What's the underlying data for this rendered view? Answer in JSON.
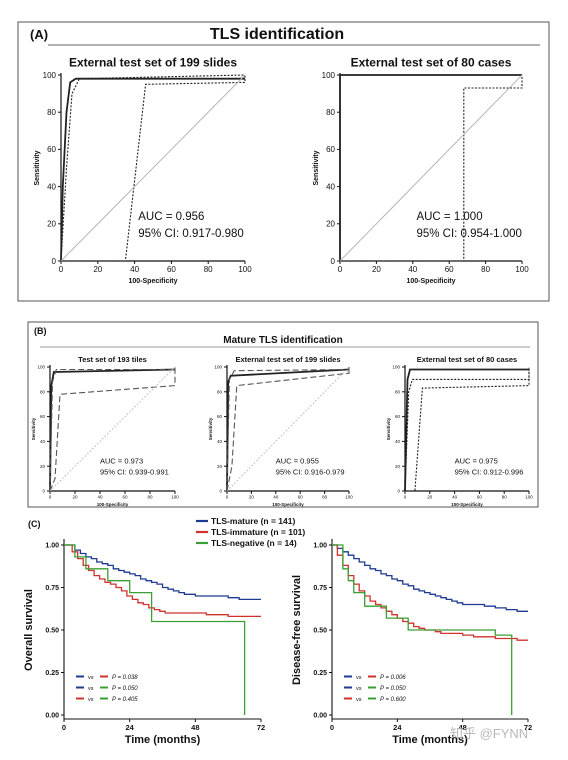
{
  "panelA": {
    "letter": "(A)",
    "title": "TLS identification",
    "charts": [
      {
        "type": "line",
        "title": "External test set of 199 slides",
        "xlabel": "100-Specificity",
        "ylabel": "Sensitivity",
        "xticks": [
          "0",
          "20",
          "40",
          "60",
          "80",
          "100"
        ],
        "yticks": [
          "0",
          "20",
          "40",
          "60",
          "80",
          "100"
        ],
        "xlim": [
          0,
          100
        ],
        "ylim": [
          0,
          100
        ],
        "auc_text": "AUC = 0.956",
        "ci_text": "95% CI: 0.917-0.980",
        "series": [
          {
            "style": "solid",
            "x": [
              0,
              1,
              3,
              5,
              8,
              100
            ],
            "y": [
              0,
              40,
              80,
              96,
              98,
              98
            ]
          },
          {
            "style": "dotted",
            "x": [
              0,
              3,
              6,
              10,
              100
            ],
            "y": [
              0,
              50,
              90,
              98,
              100
            ]
          },
          {
            "style": "dotted",
            "x": [
              0,
              35,
              46,
              100,
              100
            ],
            "y": [
              0,
              0,
              95,
              96,
              100
            ]
          },
          {
            "style": "diag",
            "x": [
              0,
              100
            ],
            "y": [
              0,
              100
            ]
          }
        ]
      },
      {
        "type": "line",
        "title": "External test set of 80 cases",
        "xlabel": "100-Specificity",
        "ylabel": "Sensitivity",
        "xticks": [
          "0",
          "20",
          "40",
          "60",
          "80",
          "100"
        ],
        "yticks": [
          "0",
          "20",
          "40",
          "60",
          "80",
          "100"
        ],
        "xlim": [
          0,
          100
        ],
        "ylim": [
          0,
          100
        ],
        "auc_text": "AUC = 1.000",
        "ci_text": "95% CI: 0.954-1.000",
        "series": [
          {
            "style": "solid",
            "x": [
              0,
              0,
              100
            ],
            "y": [
              0,
              100,
              100
            ]
          },
          {
            "style": "dotted",
            "x": [
              0,
              68,
              68,
              100,
              100
            ],
            "y": [
              0,
              0,
              93,
              93,
              100
            ]
          },
          {
            "style": "diag",
            "x": [
              0,
              100
            ],
            "y": [
              0,
              100
            ]
          }
        ]
      }
    ]
  },
  "panelB": {
    "letter": "(B)",
    "title": "Mature TLS identification",
    "charts": [
      {
        "type": "line",
        "title": "Test set of 193 tiles",
        "xlabel": "100-Specificity",
        "ylabel": "Sensitivity",
        "xticks": [
          "0",
          "20",
          "40",
          "60",
          "80",
          "100"
        ],
        "yticks": [
          "0",
          "20",
          "40",
          "60",
          "80",
          "100"
        ],
        "xlim": [
          0,
          100
        ],
        "ylim": [
          0,
          100
        ],
        "auc_text": "AUC = 0.973",
        "ci_text": "95% CI: 0.939-0.991",
        "series": [
          {
            "style": "solid",
            "x": [
              0,
              1,
              3,
              100
            ],
            "y": [
              0,
              85,
              96,
              98
            ]
          },
          {
            "style": "dashed",
            "x": [
              0,
              2,
              5,
              100,
              100
            ],
            "y": [
              0,
              88,
              98,
              98,
              100
            ]
          },
          {
            "style": "dashed",
            "x": [
              0,
              4,
              8,
              100,
              100
            ],
            "y": [
              0,
              10,
              78,
              85,
              100
            ]
          },
          {
            "style": "diag",
            "x": [
              0,
              100
            ],
            "y": [
              0,
              100
            ]
          }
        ]
      },
      {
        "type": "line",
        "title": "External test set of 199 slides",
        "xlabel": "100-Specificity",
        "ylabel": "Sensitivity",
        "xticks": [
          "0",
          "20",
          "40",
          "60",
          "80",
          "100"
        ],
        "yticks": [
          "0",
          "20",
          "40",
          "60",
          "80",
          "100"
        ],
        "xlim": [
          0,
          100
        ],
        "ylim": [
          0,
          100
        ],
        "auc_text": "AUC = 0.955",
        "ci_text": "95% CI: 0.916-0.979",
        "series": [
          {
            "style": "solid",
            "x": [
              0,
              1,
              3,
              100
            ],
            "y": [
              0,
              88,
              93,
              98
            ]
          },
          {
            "style": "dashed",
            "x": [
              0,
              2,
              6,
              100,
              100
            ],
            "y": [
              0,
              90,
              97,
              98,
              100
            ]
          },
          {
            "style": "dashed",
            "x": [
              0,
              4,
              8,
              100,
              100
            ],
            "y": [
              0,
              20,
              85,
              95,
              100
            ]
          },
          {
            "style": "diag",
            "x": [
              0,
              100
            ],
            "y": [
              0,
              100
            ]
          }
        ]
      },
      {
        "type": "line",
        "title": "External test set of 80 cases",
        "xlabel": "100-Specificity",
        "ylabel": "Sensitivity",
        "xticks": [
          "0",
          "20",
          "40",
          "60",
          "80",
          "100"
        ],
        "yticks": [
          "0",
          "20",
          "40",
          "60",
          "80",
          "100"
        ],
        "xlim": [
          0,
          100
        ],
        "ylim": [
          0,
          100
        ],
        "auc_text": "AUC = 0.975",
        "ci_text": "95% CI: 0.912-0.996",
        "series": [
          {
            "style": "solid",
            "x": [
              0,
              2,
              4,
              100
            ],
            "y": [
              0,
              90,
              98,
              98
            ]
          },
          {
            "style": "dotted",
            "x": [
              0,
              3,
              6,
              100,
              100
            ],
            "y": [
              0,
              80,
              90,
              90,
              100
            ]
          },
          {
            "style": "dotted",
            "x": [
              0,
              8,
              14,
              100,
              100
            ],
            "y": [
              0,
              0,
              83,
              85,
              100
            ]
          }
        ]
      }
    ]
  },
  "panelC": {
    "letter": "(C)",
    "legend": [
      {
        "label": "TLS-mature (n = 141)",
        "color": "#1f3a93"
      },
      {
        "label": "TLS-immature (n = 101)",
        "color": "#d0312d"
      },
      {
        "label": "TLS-negative (n = 14)",
        "color": "#3aa035"
      }
    ],
    "charts": [
      {
        "type": "line",
        "xlabel": "Time (months)",
        "ylabel": "Overall survival",
        "xticks": [
          "0",
          "24",
          "48",
          "72"
        ],
        "yticks": [
          "0.00",
          "0.25",
          "0.50",
          "0.75",
          "1.00"
        ],
        "xlim": [
          0,
          72
        ],
        "ylim": [
          0,
          1
        ],
        "pvals": [
          {
            "c1": "#1f3a93",
            "c2": "#d0312d",
            "vs": "vs",
            "p": "P = 0.038"
          },
          {
            "c1": "#1f3a93",
            "c2": "#3aa035",
            "vs": "vs",
            "p": "P = 0.050"
          },
          {
            "c1": "#d0312d",
            "c2": "#3aa035",
            "vs": "vs",
            "p": "P = 0.405"
          }
        ],
        "series": [
          {
            "name": "TLS-mature",
            "color": "#1f3a93",
            "x": [
              0,
              4,
              6,
              8,
              10,
              12,
              14,
              16,
              18,
              20,
              22,
              24,
              26,
              28,
              30,
              32,
              34,
              36,
              38,
              40,
              42,
              44,
              46,
              48,
              52,
              56,
              60,
              64,
              68,
              72
            ],
            "y": [
              1.0,
              0.97,
              0.95,
              0.93,
              0.92,
              0.9,
              0.89,
              0.88,
              0.86,
              0.85,
              0.84,
              0.83,
              0.82,
              0.8,
              0.79,
              0.78,
              0.77,
              0.75,
              0.74,
              0.73,
              0.72,
              0.71,
              0.71,
              0.7,
              0.7,
              0.7,
              0.69,
              0.68,
              0.68,
              0.68
            ]
          },
          {
            "name": "TLS-immature",
            "color": "#d0312d",
            "x": [
              0,
              3,
              5,
              7,
              9,
              11,
              13,
              15,
              17,
              19,
              21,
              23,
              25,
              27,
              29,
              31,
              33,
              35,
              37,
              40,
              44,
              48,
              52,
              56,
              60,
              64,
              68,
              72
            ],
            "y": [
              1.0,
              0.96,
              0.92,
              0.88,
              0.85,
              0.82,
              0.8,
              0.78,
              0.77,
              0.75,
              0.73,
              0.7,
              0.68,
              0.66,
              0.65,
              0.63,
              0.62,
              0.61,
              0.6,
              0.6,
              0.6,
              0.6,
              0.59,
              0.59,
              0.58,
              0.58,
              0.58,
              0.58
            ]
          },
          {
            "name": "TLS-negative",
            "color": "#3aa035",
            "x": [
              0,
              4,
              8,
              12,
              16,
              20,
              24,
              28,
              32,
              36,
              44,
              52,
              60,
              66,
              66
            ],
            "y": [
              1.0,
              0.93,
              0.86,
              0.86,
              0.79,
              0.79,
              0.72,
              0.72,
              0.55,
              0.55,
              0.55,
              0.55,
              0.55,
              0.55,
              0.0
            ]
          }
        ]
      },
      {
        "type": "line",
        "xlabel": "Time (months)",
        "ylabel": "Disease-free survival",
        "xticks": [
          "0",
          "24",
          "48",
          "72"
        ],
        "yticks": [
          "0.00",
          "0.25",
          "0.50",
          "0.75",
          "1.00"
        ],
        "xlim": [
          0,
          72
        ],
        "ylim": [
          0,
          1
        ],
        "pvals": [
          {
            "c1": "#1f3a93",
            "c2": "#d0312d",
            "vs": "vs",
            "p": "P = 0.006"
          },
          {
            "c1": "#1f3a93",
            "c2": "#3aa035",
            "vs": "vs",
            "p": "P = 0.050"
          },
          {
            "c1": "#d0312d",
            "c2": "#3aa035",
            "vs": "vs",
            "p": "P = 0.600"
          }
        ],
        "series": [
          {
            "name": "TLS-mature",
            "color": "#1f3a93",
            "x": [
              0,
              2,
              4,
              6,
              8,
              10,
              12,
              14,
              16,
              18,
              20,
              22,
              24,
              26,
              28,
              30,
              32,
              34,
              36,
              38,
              40,
              42,
              44,
              46,
              48,
              52,
              56,
              60,
              64,
              68,
              72
            ],
            "y": [
              1.0,
              0.98,
              0.96,
              0.94,
              0.92,
              0.9,
              0.88,
              0.86,
              0.85,
              0.83,
              0.82,
              0.8,
              0.79,
              0.77,
              0.76,
              0.74,
              0.73,
              0.72,
              0.71,
              0.7,
              0.69,
              0.68,
              0.67,
              0.66,
              0.65,
              0.65,
              0.64,
              0.63,
              0.62,
              0.61,
              0.61
            ]
          },
          {
            "name": "TLS-immature",
            "color": "#d0312d",
            "x": [
              0,
              2,
              4,
              6,
              8,
              10,
              12,
              14,
              16,
              18,
              20,
              22,
              24,
              26,
              28,
              30,
              32,
              34,
              36,
              38,
              40,
              44,
              48,
              52,
              56,
              60,
              64,
              68,
              72
            ],
            "y": [
              1.0,
              0.94,
              0.88,
              0.82,
              0.77,
              0.73,
              0.7,
              0.67,
              0.65,
              0.63,
              0.61,
              0.59,
              0.57,
              0.55,
              0.54,
              0.52,
              0.51,
              0.5,
              0.5,
              0.49,
              0.48,
              0.48,
              0.47,
              0.46,
              0.46,
              0.45,
              0.45,
              0.44,
              0.44
            ]
          },
          {
            "name": "TLS-negative",
            "color": "#3aa035",
            "x": [
              0,
              4,
              6,
              8,
              12,
              16,
              20,
              24,
              28,
              32,
              40,
              48,
              56,
              60,
              66,
              66
            ],
            "y": [
              1.0,
              0.86,
              0.79,
              0.72,
              0.64,
              0.64,
              0.57,
              0.57,
              0.5,
              0.5,
              0.5,
              0.5,
              0.5,
              0.47,
              0.47,
              0.0
            ]
          }
        ]
      }
    ]
  },
  "watermark": "知乎 @FYNN"
}
